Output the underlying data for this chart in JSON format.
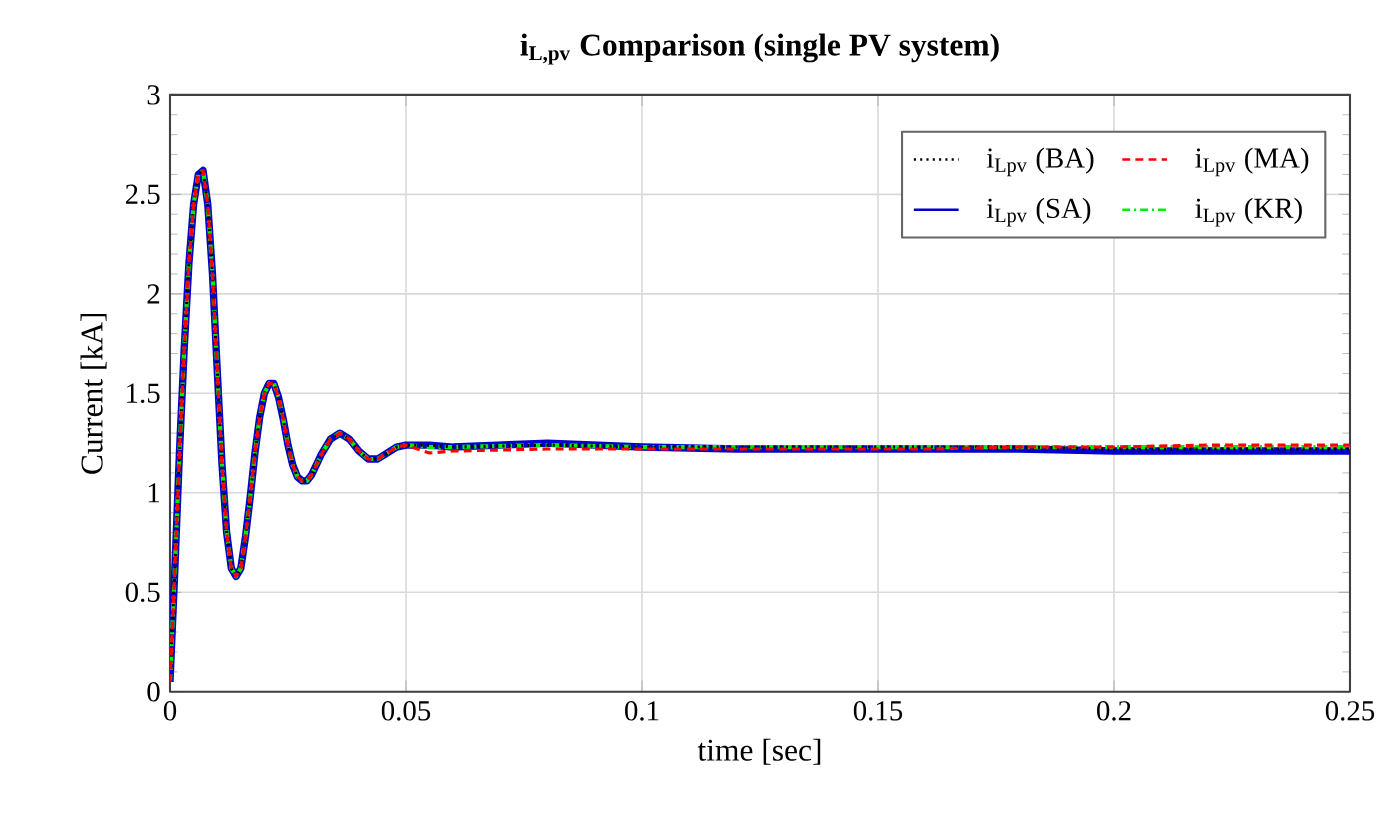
{
  "chart_data": {
    "type": "line",
    "title": "i$_{L,pv}$ Comparison (single PV system)",
    "xlabel": "time [sec]",
    "ylabel": "Current [kA]",
    "x": [
      0,
      0.001,
      0.002,
      0.003,
      0.004,
      0.005,
      0.006,
      0.007,
      0.008,
      0.009,
      0.01,
      0.011,
      0.012,
      0.013,
      0.014,
      0.015,
      0.016,
      0.017,
      0.018,
      0.019,
      0.02,
      0.021,
      0.022,
      0.023,
      0.024,
      0.025,
      0.026,
      0.027,
      0.028,
      0.029,
      0.03,
      0.032,
      0.034,
      0.036,
      0.038,
      0.04,
      0.042,
      0.044,
      0.046,
      0.048,
      0.05,
      0.055,
      0.06,
      0.08,
      0.1,
      0.12,
      0.14,
      0.16,
      0.18,
      0.2,
      0.22,
      0.25
    ],
    "series": [
      {
        "name": "i$_{Lpv}$ (BA)",
        "color": "#000000",
        "line_style": "dotted",
        "values": [
          0.05,
          0.6,
          1.2,
          1.72,
          2.15,
          2.45,
          2.6,
          2.62,
          2.45,
          2.1,
          1.62,
          1.15,
          0.8,
          0.62,
          0.58,
          0.62,
          0.78,
          0.98,
          1.2,
          1.38,
          1.5,
          1.55,
          1.55,
          1.48,
          1.37,
          1.24,
          1.14,
          1.08,
          1.06,
          1.06,
          1.09,
          1.19,
          1.27,
          1.3,
          1.27,
          1.21,
          1.17,
          1.17,
          1.2,
          1.23,
          1.24,
          1.24,
          1.23,
          1.24,
          1.23,
          1.23,
          1.23,
          1.23,
          1.23,
          1.22,
          1.22,
          1.22
        ]
      },
      {
        "name": "i$_{Lpv}$ (MA)",
        "color": "#ff0000",
        "line_style": "dashed",
        "values": [
          0.05,
          0.6,
          1.2,
          1.72,
          2.15,
          2.45,
          2.6,
          2.62,
          2.45,
          2.1,
          1.62,
          1.15,
          0.8,
          0.62,
          0.58,
          0.62,
          0.78,
          0.98,
          1.2,
          1.38,
          1.5,
          1.55,
          1.55,
          1.48,
          1.37,
          1.24,
          1.14,
          1.08,
          1.06,
          1.06,
          1.09,
          1.19,
          1.27,
          1.3,
          1.27,
          1.21,
          1.17,
          1.17,
          1.2,
          1.23,
          1.24,
          1.2,
          1.21,
          1.22,
          1.22,
          1.22,
          1.22,
          1.22,
          1.23,
          1.23,
          1.24,
          1.24
        ]
      },
      {
        "name": "i$_{Lpv}$ (SA)",
        "color": "#0000cc",
        "line_style": "solid",
        "values": [
          0.05,
          0.6,
          1.2,
          1.72,
          2.15,
          2.45,
          2.6,
          2.62,
          2.45,
          2.1,
          1.62,
          1.15,
          0.8,
          0.62,
          0.58,
          0.62,
          0.78,
          0.98,
          1.2,
          1.38,
          1.5,
          1.55,
          1.55,
          1.48,
          1.37,
          1.24,
          1.14,
          1.08,
          1.06,
          1.06,
          1.09,
          1.19,
          1.27,
          1.3,
          1.27,
          1.21,
          1.17,
          1.17,
          1.2,
          1.23,
          1.24,
          1.24,
          1.23,
          1.25,
          1.23,
          1.22,
          1.22,
          1.22,
          1.22,
          1.21,
          1.21,
          1.21
        ]
      },
      {
        "name": "i$_{Lpv}$ (KR)",
        "color": "#00ee00",
        "line_style": "dashdot",
        "values": [
          0.05,
          0.6,
          1.2,
          1.72,
          2.15,
          2.45,
          2.6,
          2.62,
          2.45,
          2.1,
          1.62,
          1.15,
          0.8,
          0.62,
          0.58,
          0.62,
          0.78,
          0.98,
          1.2,
          1.38,
          1.5,
          1.55,
          1.55,
          1.48,
          1.37,
          1.24,
          1.14,
          1.08,
          1.06,
          1.06,
          1.09,
          1.19,
          1.27,
          1.3,
          1.27,
          1.21,
          1.17,
          1.17,
          1.2,
          1.23,
          1.24,
          1.23,
          1.23,
          1.24,
          1.23,
          1.23,
          1.23,
          1.23,
          1.23,
          1.23,
          1.23,
          1.23
        ]
      }
    ],
    "xlim": [
      0,
      0.25
    ],
    "xticks": [
      0,
      0.05,
      0.1,
      0.15,
      0.2,
      0.25
    ],
    "ylim": [
      0,
      3
    ],
    "yticks": [
      0,
      0.5,
      1,
      1.5,
      2,
      2.5,
      3
    ],
    "grid": true,
    "legend": "top right",
    "marker": "none"
  }
}
